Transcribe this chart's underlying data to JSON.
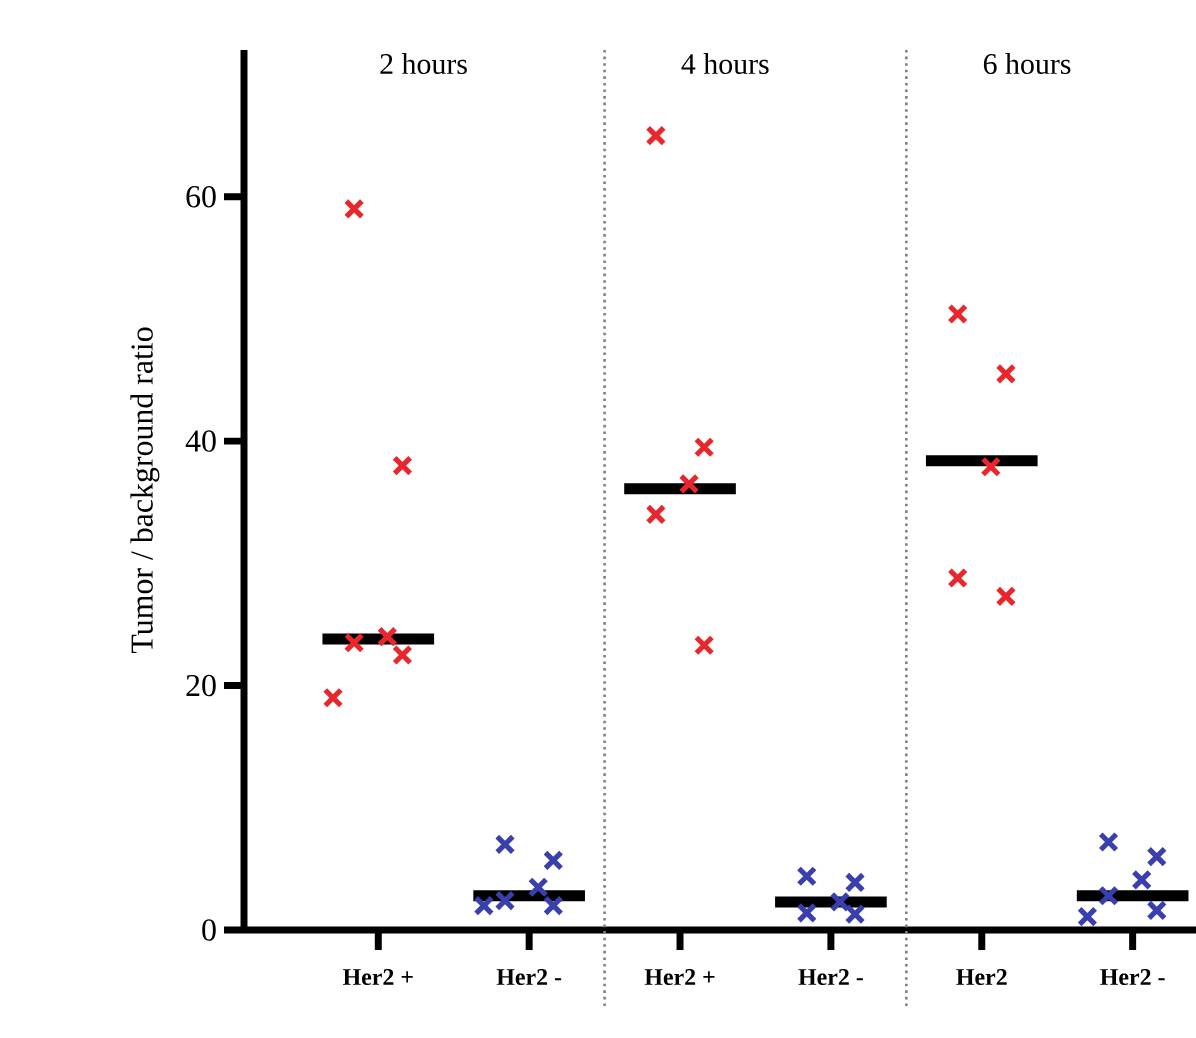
{
  "chart_data": {
    "type": "scatter",
    "ylabel": "Tumor / background ratio",
    "categories": [
      "Her2 +",
      "Her2 -",
      "Her2 +",
      "Her2 -",
      "Her2",
      "Her2 -"
    ],
    "ylim": [
      0,
      72
    ],
    "yticks": [
      0,
      20,
      40,
      60
    ],
    "marker": "cross",
    "annotations": [
      "2 hours",
      "4 hours",
      "6 hours"
    ],
    "series": [
      {
        "values": [
          59,
          7.0,
          65,
          4.4,
          50.4,
          7.2
        ],
        "colors": [
          "#e8262b",
          "#3a3fae",
          "#e8262b",
          "#3a3fae",
          "#e8262b",
          "#3a3fae"
        ]
      },
      {
        "values": [
          38,
          5.7,
          39.5,
          3.9,
          45.5,
          6.0
        ],
        "colors": [
          "#e8262b",
          "#3a3fae",
          "#e8262b",
          "#3a3fae",
          "#e8262b",
          "#3a3fae"
        ]
      },
      {
        "values": [
          24,
          3.5,
          36.5,
          2.3,
          37.9,
          4.1
        ],
        "colors": [
          "#e8262b",
          "#3a3fae",
          "#e8262b",
          "#3a3fae",
          "#e8262b",
          "#3a3fae"
        ]
      },
      {
        "values": [
          23.5,
          2.4,
          34,
          1.4,
          28.8,
          2.8
        ],
        "colors": [
          "#e8262b",
          "#3a3fae",
          "#e8262b",
          "#3a3fae",
          "#e8262b",
          "#3a3fae"
        ]
      },
      {
        "values": [
          22.5,
          2.0,
          23.3,
          1.3,
          27.3,
          1.6
        ],
        "colors": [
          "#e8262b",
          "#3a3fae",
          "#e8262b",
          "#3a3fae",
          "#e8262b",
          "#3a3fae"
        ]
      },
      {
        "values": [
          19,
          2.0,
          null,
          null,
          null,
          1.1
        ],
        "colors": [
          "#e8262b",
          "#3a3fae",
          "#e8262b",
          "#3a3fae",
          "#e8262b",
          "#3a3fae"
        ]
      },
      {
        "type": "box",
        "color": "#000000",
        "boxes": [
          {
            "low": 23.8,
            "q1": 23.8,
            "median": 23.8,
            "q3": 23.8,
            "high": 23.8
          },
          {
            "low": 2.8,
            "q1": 2.8,
            "median": 2.8,
            "q3": 2.8,
            "high": 2.8
          },
          {
            "low": 36.1,
            "q1": 36.1,
            "median": 36.1,
            "q3": 36.1,
            "high": 36.1
          },
          {
            "low": 2.3,
            "q1": 2.3,
            "median": 2.3,
            "q3": 2.3,
            "high": 2.3
          },
          {
            "low": 38.4,
            "q1": 38.4,
            "median": 38.4,
            "q3": 38.4,
            "high": 38.4
          },
          {
            "low": 2.8,
            "q1": 2.8,
            "median": 2.8,
            "q3": 2.8,
            "high": 2.8
          }
        ]
      }
    ]
  }
}
